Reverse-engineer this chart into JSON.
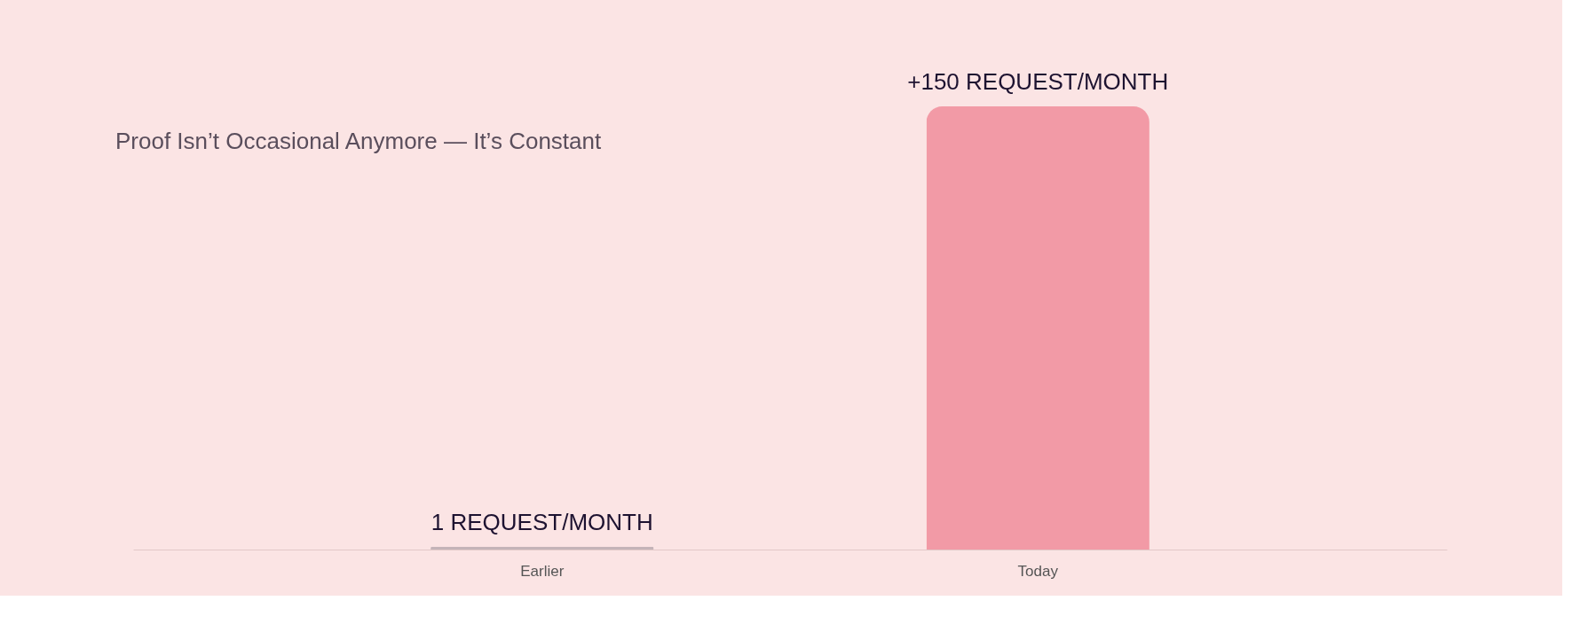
{
  "chart_data": {
    "type": "bar",
    "title": "Proof Isn’t Occasional Anymore — It’s Constant",
    "categories": [
      "Earlier",
      "Today"
    ],
    "values": [
      1,
      150
    ],
    "colors": [
      "#c4b3b8",
      "#f29aa6"
    ],
    "value_labels": [
      "1 REQUEST/MONTH",
      "+150 REQUEST/MONTH"
    ],
    "grid": false
  }
}
